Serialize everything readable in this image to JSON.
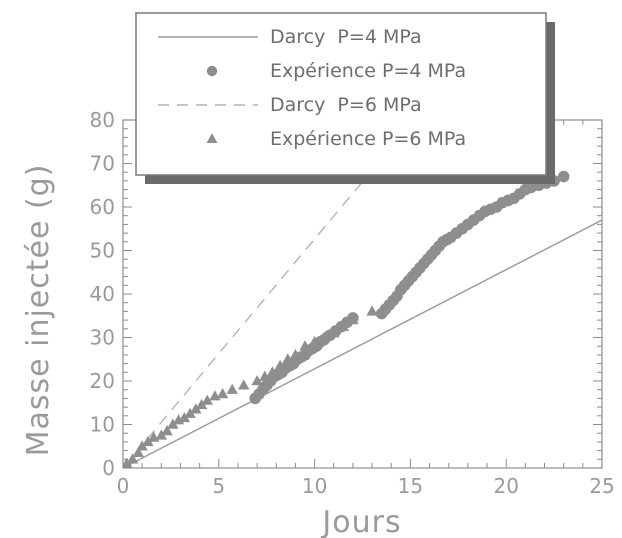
{
  "chart_data": {
    "type": "scatter",
    "xlabel": "Jours",
    "ylabel": "Masse injectée (g)",
    "xlim": [
      0,
      25
    ],
    "ylim": [
      0,
      80
    ],
    "xticks": [
      0,
      5,
      10,
      15,
      20,
      25
    ],
    "yticks": [
      0,
      10,
      20,
      30,
      40,
      50,
      60,
      70,
      80
    ],
    "grid": false,
    "legend_position": "top-left",
    "colors": {
      "axis": "#8c8c8c",
      "line": "#9a9a9a",
      "dash": "#b4b4b4",
      "marker": "#8e8e8e",
      "text": "#6e6e6e",
      "shadow": "#6a6a6a"
    },
    "series": [
      {
        "name": "Darcy  P=4 MPa",
        "kind": "line",
        "style": "solid",
        "x": [
          0,
          25
        ],
        "y": [
          0,
          57
        ]
      },
      {
        "name": "Expérience P=4 MPa",
        "kind": "scatter",
        "marker": "circle",
        "x": [
          6.9,
          7.1,
          7.3,
          7.5,
          7.7,
          7.9,
          8.1,
          8.3,
          8.5,
          8.7,
          8.9,
          9.1,
          9.3,
          9.5,
          9.7,
          9.9,
          10.1,
          10.3,
          10.5,
          10.8,
          11.1,
          11.4,
          11.7,
          12.0,
          13.5,
          13.7,
          13.9,
          14.1,
          14.3,
          14.5,
          14.7,
          14.9,
          15.1,
          15.3,
          15.5,
          15.7,
          15.9,
          16.1,
          16.3,
          16.5,
          16.7,
          16.9,
          17.1,
          17.4,
          17.7,
          18.0,
          18.3,
          18.6,
          18.9,
          19.2,
          19.5,
          19.8,
          20.1,
          20.4,
          20.7,
          21.0,
          21.3,
          21.7,
          22.1,
          22.5,
          23.0
        ],
        "y": [
          16,
          17,
          18,
          19,
          20,
          21,
          21.5,
          22,
          23,
          23.5,
          24,
          25,
          25.5,
          26,
          27,
          27.5,
          28,
          29,
          29.5,
          30.5,
          31.5,
          32.5,
          33.5,
          34.5,
          35.5,
          36.5,
          37.5,
          38.5,
          39.5,
          41,
          42,
          43,
          44,
          45,
          46,
          47,
          48,
          49,
          50,
          51,
          52,
          52.5,
          53,
          54,
          55,
          56,
          57,
          58,
          59,
          59.5,
          60,
          61,
          61.5,
          62,
          63,
          64,
          64.5,
          65,
          65.5,
          66,
          67
        ]
      },
      {
        "name": "Darcy  P=6 MPa",
        "kind": "line",
        "style": "dashed",
        "x": [
          0,
          15.2
        ],
        "y": [
          0,
          80
        ]
      },
      {
        "name": "Expérience P=6 MPa",
        "kind": "scatter",
        "marker": "triangle",
        "x": [
          0.2,
          0.5,
          0.8,
          1.0,
          1.3,
          1.6,
          2.0,
          2.3,
          2.6,
          2.9,
          3.2,
          3.5,
          3.8,
          4.1,
          4.4,
          4.8,
          5.2,
          5.7,
          6.3,
          7.0,
          7.4,
          7.8,
          8.2,
          8.6,
          9.0,
          9.5,
          10.0,
          10.5,
          11.0,
          11.5,
          12.0,
          13.0
        ],
        "y": [
          1,
          2,
          3.5,
          5,
          6,
          7,
          7.5,
          8.5,
          10,
          11,
          11.5,
          12.5,
          13.5,
          14.5,
          15.5,
          16.5,
          17,
          18,
          19,
          20,
          21,
          22,
          23.5,
          25,
          26,
          28,
          29,
          30,
          31,
          32.5,
          34,
          36
        ]
      }
    ]
  }
}
